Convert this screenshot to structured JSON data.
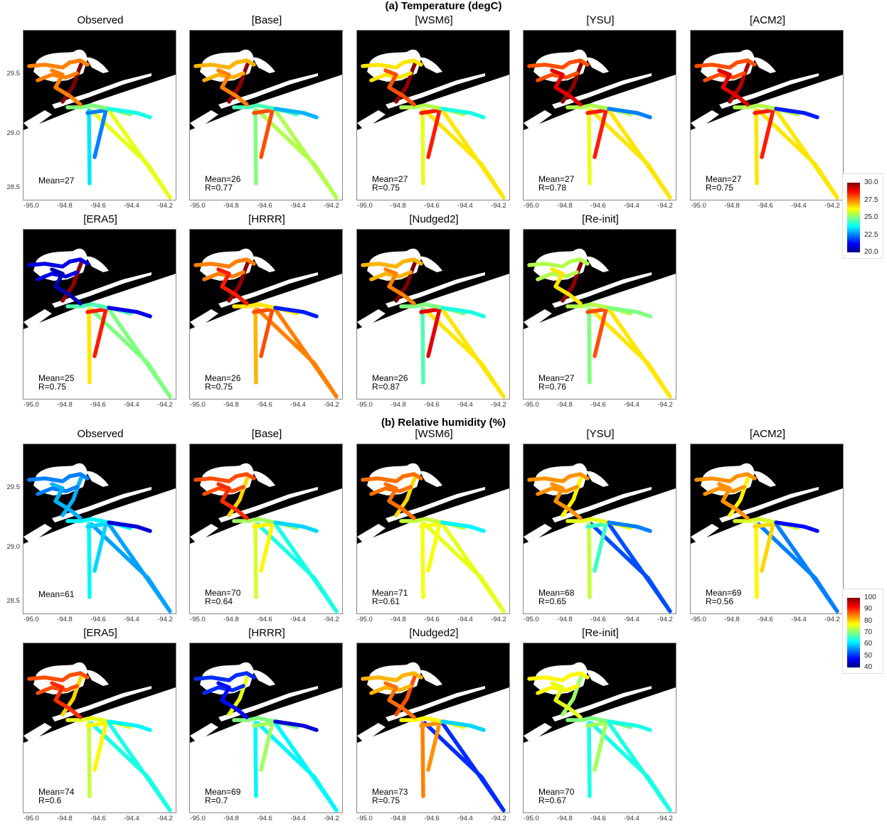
{
  "colors": {
    "land": "#000000",
    "scale": [
      "#00007f",
      "#0000ff",
      "#0080ff",
      "#00ffff",
      "#7fff7f",
      "#ffff00",
      "#ff8000",
      "#ff0000",
      "#7f0000"
    ]
  },
  "axes": {
    "x_ticks": [
      "-95.0",
      "-94.8",
      "-94.6",
      "-94.4",
      "-94.2"
    ],
    "y_ticks": [
      "29.5",
      "29.0",
      "28.5"
    ]
  },
  "sections": [
    {
      "title": "(a) Temperature (degC)",
      "variable": "temperature",
      "legend": {
        "min": 20.0,
        "max": 30.0,
        "labels": [
          "30.0",
          "27.5",
          "25.0",
          "22.5",
          "20.0"
        ]
      },
      "panels": [
        {
          "name": "Observed",
          "mean": "Mean=27",
          "r": "",
          "base": 25.0,
          "bay": 27.5,
          "pipe": 30.0,
          "diag": 22.5,
          "offshore": 26.0,
          "south": 23.5,
          "east": 24.0,
          "northwest": 27.5
        },
        {
          "name": "[Base]",
          "mean": "Mean=26",
          "r": "R=0.77",
          "base": 24.5,
          "bay": 27.0,
          "pipe": 29.8,
          "diag": 28.0,
          "offshore": 25.5,
          "south": 25.0,
          "east": 23.0,
          "northwest": 27.5
        },
        {
          "name": "[WSM6]",
          "mean": "Mean=27",
          "r": "R=0.75",
          "base": 25.5,
          "bay": 26.5,
          "pipe": 29.8,
          "diag": 28.5,
          "offshore": 26.5,
          "south": 26.0,
          "east": 24.0,
          "northwest": 28.0
        },
        {
          "name": "[YSU]",
          "mean": "Mean=27",
          "r": "R=0.78",
          "base": 25.5,
          "bay": 28.0,
          "pipe": 29.8,
          "diag": 28.5,
          "offshore": 26.5,
          "south": 26.0,
          "east": 22.5,
          "northwest": 29.0
        },
        {
          "name": "[ACM2]",
          "mean": "Mean=27",
          "r": "R=0.75",
          "base": 25.5,
          "bay": 28.0,
          "pipe": 29.5,
          "diag": 28.5,
          "offshore": 26.5,
          "south": 26.5,
          "east": 21.5,
          "northwest": 29.0
        },
        {
          "name": "[ERA5]",
          "mean": "Mean=25",
          "r": "R=0.75",
          "base": 24.5,
          "bay": 21.0,
          "pipe": 29.8,
          "diag": 28.5,
          "offshore": 25.0,
          "south": 26.5,
          "east": 21.0,
          "northwest": 20.5
        },
        {
          "name": "[HRRR]",
          "mean": "Mean=26",
          "r": "R=0.75",
          "base": 26.5,
          "bay": 27.5,
          "pipe": 29.8,
          "diag": 28.0,
          "offshore": 27.5,
          "south": 27.0,
          "east": 21.5,
          "northwest": 28.5
        },
        {
          "name": "[Nudged2]",
          "mean": "Mean=26",
          "r": "R=0.87",
          "base": 25.0,
          "bay": 27.0,
          "pipe": 30.0,
          "diag": 29.0,
          "offshore": 26.5,
          "south": 24.5,
          "east": 24.0,
          "northwest": 27.5
        },
        {
          "name": "[Re-init]",
          "mean": "Mean=27",
          "r": "R=0.76",
          "base": 25.5,
          "bay": 25.5,
          "pipe": 29.8,
          "diag": 28.0,
          "offshore": 26.5,
          "south": 25.0,
          "east": 25.0,
          "northwest": 26.5
        }
      ]
    },
    {
      "title": "(b) Relative humidity (%)",
      "variable": "relative_humidity",
      "legend": {
        "min": 40,
        "max": 100,
        "labels": [
          "100",
          "90",
          "80",
          "70",
          "60",
          "50",
          "40"
        ]
      },
      "panels": [
        {
          "name": "Observed",
          "mean": "Mean=61",
          "r": "",
          "base": 62,
          "bay": 55,
          "pipe": 58,
          "diag": 60,
          "offshore": 57,
          "south": 62,
          "east": 45,
          "northwest": 58
        },
        {
          "name": "[Base]",
          "mean": "Mean=70",
          "r": "R=0.64",
          "base": 72,
          "bay": 88,
          "pipe": 80,
          "diag": 78,
          "offshore": 64,
          "south": 75,
          "east": 60,
          "northwest": 90
        },
        {
          "name": "[WSM6]",
          "mean": "Mean=71",
          "r": "R=0.61",
          "base": 74,
          "bay": 86,
          "pipe": 80,
          "diag": 77,
          "offshore": 76,
          "south": 77,
          "east": 62,
          "northwest": 86
        },
        {
          "name": "[YSU]",
          "mean": "Mean=68",
          "r": "R=0.65",
          "base": 76,
          "bay": 84,
          "pipe": 78,
          "diag": 66,
          "offshore": 52,
          "south": 74,
          "east": 55,
          "northwest": 84
        },
        {
          "name": "[ACM2]",
          "mean": "Mean=69",
          "r": "R=0.56",
          "base": 75,
          "bay": 84,
          "pipe": 78,
          "diag": 80,
          "offshore": 55,
          "south": 78,
          "east": 48,
          "northwest": 84
        },
        {
          "name": "[ERA5]",
          "mean": "Mean=74",
          "r": "R=0.6",
          "base": 76,
          "bay": 88,
          "pipe": 80,
          "diag": 78,
          "offshore": 64,
          "south": 74,
          "east": 62,
          "northwest": 90
        },
        {
          "name": "[HRRR]",
          "mean": "Mean=69",
          "r": "R=0.7",
          "base": 70,
          "bay": 50,
          "pipe": 76,
          "diag": 72,
          "offshore": 62,
          "south": 62,
          "east": 45,
          "northwest": 48
        },
        {
          "name": "[Nudged2]",
          "mean": "Mean=73",
          "r": "R=0.75",
          "base": 78,
          "bay": 82,
          "pipe": 88,
          "diag": 84,
          "offshore": 50,
          "south": 85,
          "east": 60,
          "northwest": 86
        },
        {
          "name": "[Re-init]",
          "mean": "Mean=70",
          "r": "R=0.67",
          "base": 70,
          "bay": 78,
          "pipe": 72,
          "diag": 72,
          "offshore": 64,
          "south": 64,
          "east": 64,
          "northwest": 76
        }
      ]
    }
  ]
}
